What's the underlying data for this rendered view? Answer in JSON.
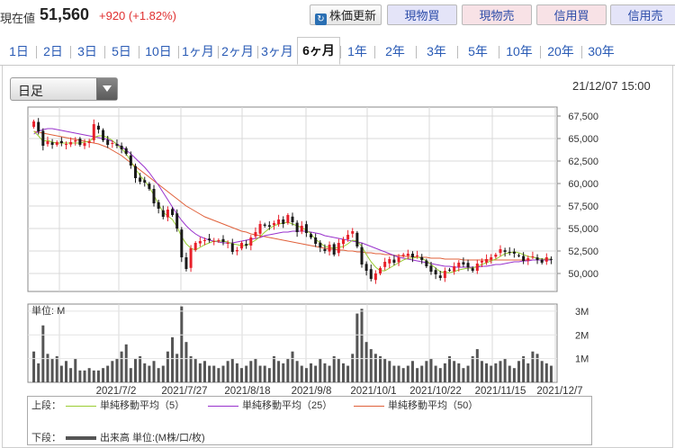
{
  "header": {
    "price_label": "現在値",
    "price_value": "51,560",
    "price_change": "+920 (+1.82%)",
    "refresh_label": "株価更新",
    "buy_label": "現物買",
    "sell_label": "現物売",
    "credit_buy_label": "信用買",
    "credit_sell_label": "信用売"
  },
  "tabs": [
    "1日",
    "2日",
    "3日",
    "5日",
    "10日",
    "1ヶ月",
    "2ヶ月",
    "3ヶ月",
    "6ヶ月",
    "1年",
    "2年",
    "3年",
    "5年",
    "10年",
    "20年",
    "30年"
  ],
  "active_tab": "6ヶ月",
  "controls": {
    "period_select": "日足",
    "timestamp": "21/12/07 15:00"
  },
  "legend": {
    "upper_label": "上段：",
    "ma5": "単純移動平均（5）",
    "ma25": "単純移動平均（25）",
    "ma50": "単純移動平均（50）",
    "lower_label": "下段：",
    "volume": "出来高 単位:(M株/口/枚)"
  },
  "colors": {
    "up": "#e8202a",
    "down": "#1a1a1a",
    "ma5": "#9acd32",
    "ma25": "#9932cc",
    "ma50": "#e0603a",
    "volume": "#555555"
  },
  "chart_data": [
    {
      "type": "candlestick",
      "title": "",
      "y_ticks": [
        "67,500",
        "65,000",
        "62,500",
        "60,000",
        "57,500",
        "55,000",
        "52,500",
        "50,000"
      ],
      "ylim": [
        48000,
        68500
      ],
      "x_ticks": [
        "2021/7/2",
        "2021/7/27",
        "2021/8/18",
        "2021/9/8",
        "2021/10/1",
        "2021/10/22",
        "2021/11/15",
        "2021/12/7"
      ],
      "close_approx": [
        66900,
        65800,
        64200,
        64700,
        64300,
        64600,
        64500,
        64400,
        64600,
        64800,
        64300,
        64500,
        64700,
        66600,
        66000,
        64800,
        64300,
        64500,
        64200,
        63800,
        63300,
        62000,
        60600,
        60200,
        60100,
        59400,
        57800,
        57200,
        56300,
        57100,
        56500,
        55000,
        51800,
        50500,
        52800,
        53400,
        53600,
        53700,
        53700,
        53600,
        53700,
        53500,
        53400,
        52400,
        52600,
        53400,
        53100,
        54000,
        54600,
        55500,
        55300,
        55200,
        55600,
        56000,
        55500,
        56500,
        55700,
        54600,
        55300,
        54500,
        54000,
        53300,
        52900,
        52500,
        53200,
        52100,
        53400,
        53800,
        54300,
        54700,
        53000,
        51000,
        50300,
        49400,
        50000,
        50600,
        51300,
        51600,
        51200,
        51800,
        52100,
        52200,
        51800,
        52000,
        51500,
        50800,
        50200,
        49900,
        49500,
        50300,
        50400,
        50800,
        51200,
        51000,
        50700,
        50300,
        51100,
        51400,
        51600,
        51800,
        52100,
        52700,
        52400,
        52300,
        52200,
        52000,
        51400,
        51700,
        51900,
        51500,
        51200,
        51800,
        51560
      ],
      "ma5_approx": [
        65800,
        65300,
        64700,
        64800,
        64600,
        64500,
        64500,
        64500,
        64500,
        64500,
        64500,
        64600,
        64700,
        65100,
        65300,
        65300,
        65100,
        64800,
        64300,
        63900,
        63300,
        62500,
        61600,
        60900,
        60300,
        59600,
        58700,
        57700,
        56800,
        56400,
        56000,
        55200,
        54100,
        53300,
        52800,
        52600,
        52900,
        53200,
        53400,
        53600,
        53600,
        53600,
        53500,
        53300,
        53200,
        53100,
        53100,
        53400,
        53700,
        54100,
        54600,
        55000,
        55300,
        55500,
        55600,
        55700,
        55500,
        55300,
        55100,
        54800,
        54400,
        53800,
        53400,
        53000,
        52900,
        52800,
        52900,
        53000,
        53300,
        53700,
        53600,
        53000,
        52100,
        51300,
        50700,
        50300,
        50300,
        50600,
        50900,
        51200,
        51500,
        51700,
        51700,
        51800,
        51700,
        51400,
        51000,
        50600,
        50200,
        50100,
        50100,
        50200,
        50400,
        50500,
        50600,
        50600,
        50800,
        51000,
        51200,
        51400,
        51600,
        51900,
        52200,
        52300,
        52400,
        52300,
        52100,
        51900,
        51800,
        51700,
        51600,
        51600,
        51600
      ],
      "ma25_approx": [
        65500,
        65800,
        66000,
        66100,
        66100,
        66000,
        65900,
        65800,
        65700,
        65600,
        65500,
        65400,
        65300,
        65200,
        65100,
        65000,
        64900,
        64700,
        64400,
        64100,
        63700,
        63300,
        62800,
        62300,
        61800,
        61200,
        60500,
        59800,
        59000,
        58200,
        57400,
        56600,
        55900,
        55300,
        54800,
        54400,
        54100,
        53900,
        53700,
        53600,
        53500,
        53400,
        53400,
        53400,
        53500,
        53600,
        53700,
        53800,
        53900,
        54000,
        54200,
        54300,
        54400,
        54500,
        54600,
        54600,
        54700,
        54700,
        54700,
        54700,
        54600,
        54500,
        54400,
        54200,
        54100,
        54000,
        53900,
        53800,
        53700,
        53600,
        53500,
        53400,
        53200,
        53000,
        52800,
        52600,
        52400,
        52200,
        52000,
        51800,
        51700,
        51600,
        51500,
        51400,
        51300,
        51200,
        51100,
        51000,
        50900,
        50800,
        50800,
        50700,
        50700,
        50700,
        50700,
        50700,
        50700,
        50800,
        50800,
        50900,
        51000,
        51000,
        51100,
        51200,
        51300,
        51300,
        51400,
        51400,
        51500,
        51500,
        51500,
        51500,
        51500
      ],
      "ma50_approx": [
        65800,
        65700,
        65600,
        65500,
        65400,
        65300,
        65200,
        65100,
        65000,
        64900,
        64800,
        64700,
        64600,
        64500,
        64400,
        64200,
        64000,
        63700,
        63400,
        63100,
        62700,
        62300,
        61900,
        61500,
        61100,
        60700,
        60300,
        59900,
        59500,
        59100,
        58700,
        58300,
        57900,
        57500,
        57200,
        56900,
        56600,
        56300,
        56100,
        55900,
        55700,
        55500,
        55300,
        55100,
        54900,
        54700,
        54600,
        54400,
        54300,
        54200,
        54100,
        54000,
        53900,
        53800,
        53700,
        53600,
        53500,
        53400,
        53300,
        53200,
        53100,
        53000,
        52900,
        52800,
        52700,
        52700,
        52600,
        52600,
        52500,
        52500,
        52400,
        52400,
        52300,
        52300,
        52200,
        52200,
        52100,
        52100,
        52000,
        52000,
        51900,
        51900,
        51900,
        51800,
        51800,
        51800,
        51700,
        51700,
        51700,
        51600,
        51600,
        51600,
        51600,
        51500,
        51500,
        51500,
        51500,
        51500,
        51500,
        51500,
        51500,
        51500,
        51500,
        51500,
        51500,
        51500,
        51500,
        51500,
        51500,
        51500,
        51500,
        51500,
        51500
      ]
    },
    {
      "type": "bar",
      "title": "単位: M",
      "ylabel_ticks": [
        "3M",
        "2M",
        "1M"
      ],
      "ylim": [
        0,
        3300000
      ],
      "values": [
        1300000,
        800000,
        2400000,
        1200000,
        1000000,
        1100000,
        700000,
        900000,
        600000,
        1000000,
        500000,
        500000,
        600000,
        500000,
        500000,
        600000,
        700000,
        900000,
        1000000,
        1300000,
        1600000,
        600000,
        1000000,
        1100000,
        800000,
        700000,
        900000,
        600000,
        700000,
        1300000,
        1900000,
        1200000,
        3200000,
        1700000,
        1100000,
        1000000,
        800000,
        900000,
        700000,
        700000,
        600000,
        700000,
        900000,
        1000000,
        800000,
        600000,
        700000,
        900000,
        1000000,
        700000,
        700000,
        600000,
        1100000,
        900000,
        800000,
        1000000,
        1300000,
        900000,
        700000,
        600000,
        800000,
        700000,
        1000000,
        800000,
        700000,
        1100000,
        1000000,
        800000,
        700000,
        1200000,
        2900000,
        3100000,
        1700000,
        1400000,
        1200000,
        1100000,
        1000000,
        900000,
        700000,
        700000,
        600000,
        700000,
        900000,
        600000,
        700000,
        900000,
        1000000,
        700000,
        600000,
        800000,
        1100000,
        900000,
        800000,
        600000,
        700000,
        1100000,
        1400000,
        900000,
        800000,
        700000,
        800000,
        900000,
        1000000,
        700000,
        600000,
        900000,
        1100000,
        800000,
        1300000,
        1200000,
        900000,
        800000,
        700000
      ]
    }
  ]
}
